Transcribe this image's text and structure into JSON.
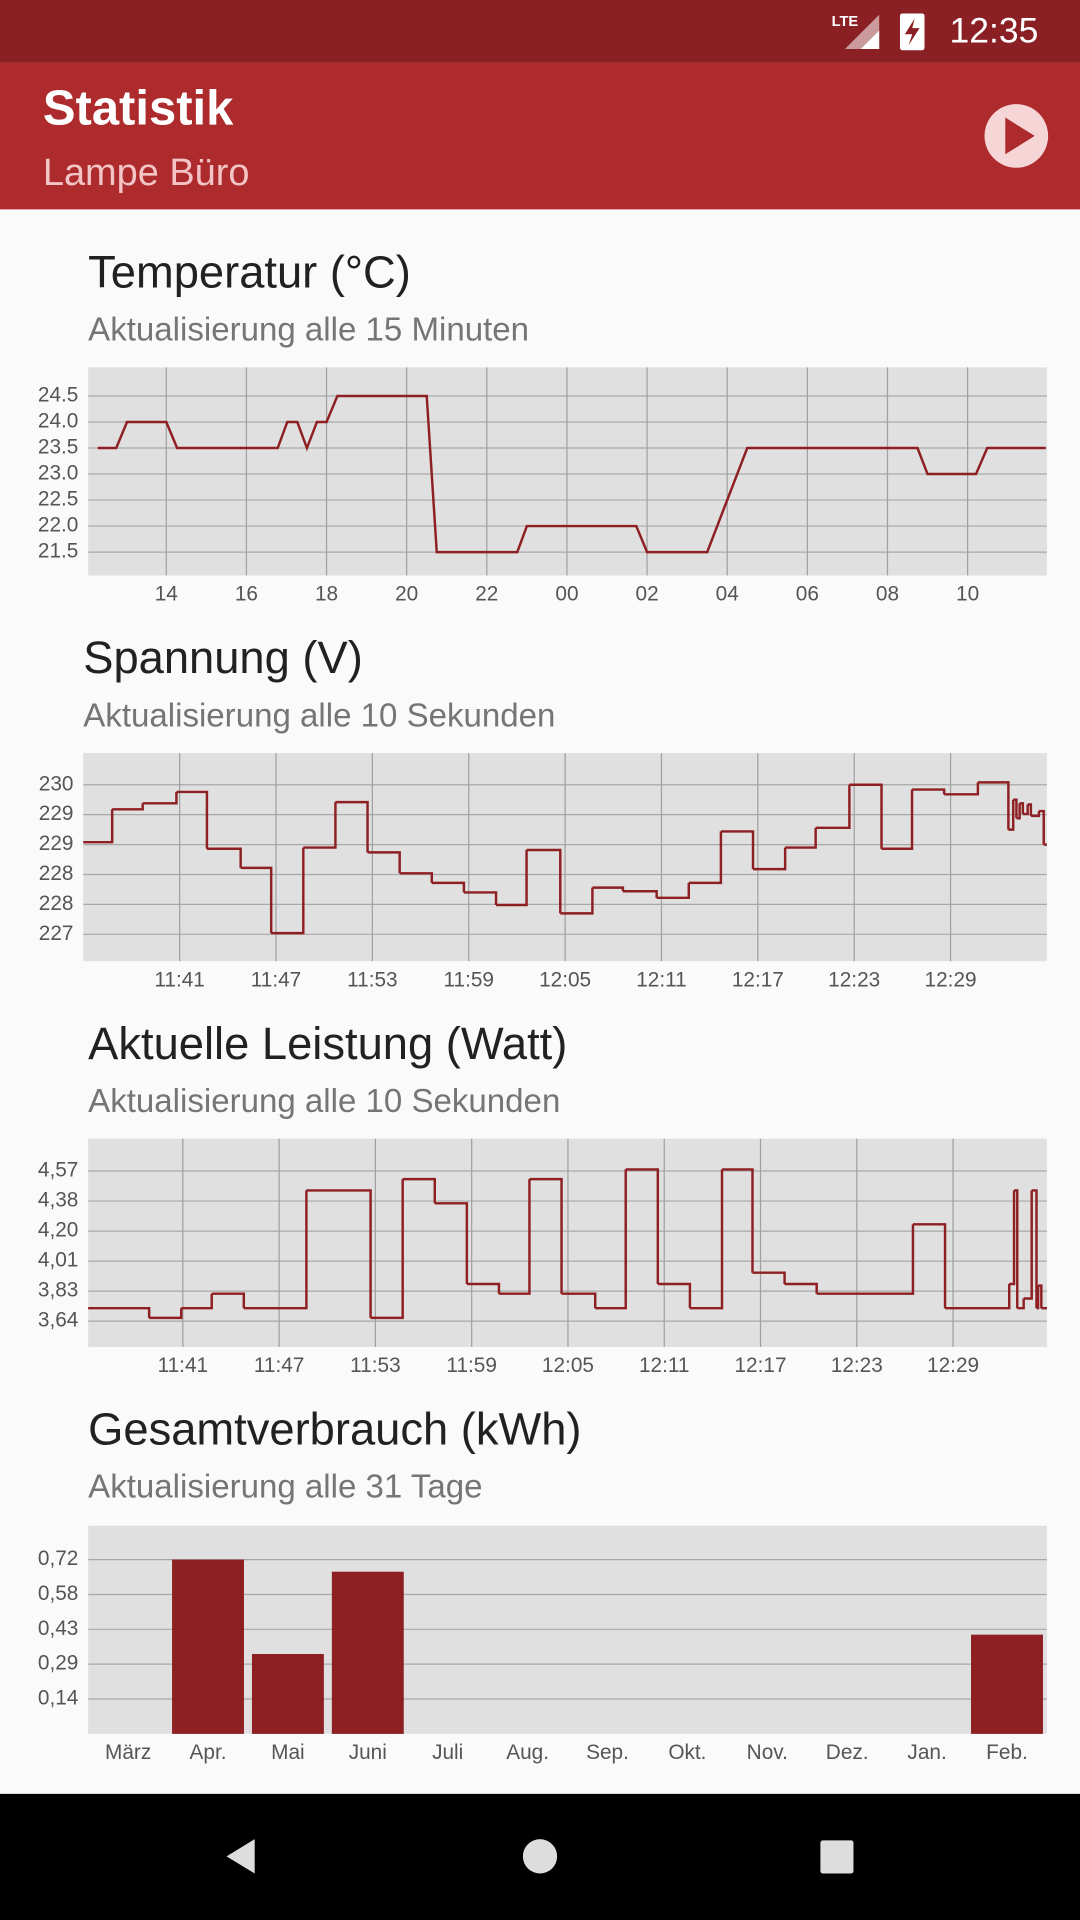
{
  "status_bar": {
    "network": "LTE",
    "time": "12:35"
  },
  "app_bar": {
    "title": "Statistik",
    "subtitle": "Lampe Büro"
  },
  "chart_data": [
    {
      "type": "line",
      "title": "Temperatur (°C)",
      "subtitle": "Aktualisierung alle 15 Minuten",
      "color": "#8e1f22",
      "grid": true,
      "x": [
        12.29,
        12.75,
        13.02,
        14.0,
        14.27,
        16.78,
        17.02,
        17.27,
        17.51,
        17.76,
        18.0,
        18.27,
        20.5,
        20.75,
        22.76,
        23.0,
        25.73,
        26.0,
        27.5,
        28.5,
        32.75,
        33.0,
        34.21,
        34.49,
        35.95
      ],
      "values": [
        23.5,
        23.5,
        24.0,
        24.0,
        23.5,
        23.5,
        24.0,
        24.0,
        23.5,
        24.0,
        24.0,
        24.5,
        24.5,
        21.5,
        21.5,
        22.0,
        22.0,
        21.5,
        21.5,
        23.5,
        23.5,
        23.0,
        23.0,
        23.5,
        23.5
      ],
      "xlim": [
        12.05,
        35.98
      ],
      "ylim": [
        21.05,
        25.05
      ],
      "xticks": [
        {
          "value": 14,
          "label": "14"
        },
        {
          "value": 16,
          "label": "16"
        },
        {
          "value": 18,
          "label": "18"
        },
        {
          "value": 20,
          "label": "20"
        },
        {
          "value": 22,
          "label": "22"
        },
        {
          "value": 24,
          "label": "00"
        },
        {
          "value": 26,
          "label": "02"
        },
        {
          "value": 28,
          "label": "04"
        },
        {
          "value": 30,
          "label": "06"
        },
        {
          "value": 32,
          "label": "08"
        },
        {
          "value": 34,
          "label": "10"
        }
      ],
      "yticks": [
        21.5,
        {
          "value": 22,
          "label": "22.0"
        },
        22.5,
        {
          "value": 23,
          "label": "23.0"
        },
        23.5,
        {
          "value": 24,
          "label": "24.0"
        },
        24.5
      ]
    },
    {
      "type": "line",
      "step": "post",
      "title": "Spannung (V)",
      "subtitle": "Aktualisierung alle 10 Sekunden",
      "color": "#8e1f22",
      "grid": true,
      "x": [
        695.0,
        696.8,
        698.7,
        700.8,
        702.7,
        704.8,
        706.7,
        708.7,
        710.7,
        712.7,
        714.7,
        716.7,
        718.7,
        720.7,
        722.6,
        724.7,
        726.7,
        728.6,
        730.7,
        732.7,
        734.7,
        736.7,
        738.7,
        740.6,
        742.7,
        744.7,
        746.6,
        748.6,
        750.7,
        752.6,
        752.9,
        753.1,
        753.3,
        753.5,
        753.8,
        754.0,
        754.5,
        754.8
      ],
      "values": [
        228.74,
        229.29,
        229.39,
        229.58,
        228.63,
        228.31,
        227.22,
        228.65,
        229.41,
        228.57,
        228.22,
        228.06,
        227.9,
        227.69,
        228.61,
        227.55,
        227.98,
        227.92,
        227.81,
        228.06,
        228.92,
        228.29,
        228.65,
        228.98,
        229.7,
        228.63,
        229.62,
        229.54,
        229.74,
        228.95,
        229.45,
        229.14,
        229.39,
        229.21,
        229.37,
        229.18,
        229.26,
        228.7
      ],
      "xlim": [
        695,
        755
      ],
      "ylim": [
        226.75,
        230.23
      ],
      "xticks": [
        {
          "value": 701,
          "label": "11:41"
        },
        {
          "value": 707,
          "label": "11:47"
        },
        {
          "value": 713,
          "label": "11:53"
        },
        {
          "value": 719,
          "label": "11:59"
        },
        {
          "value": 725,
          "label": "12:05"
        },
        {
          "value": 731,
          "label": "12:11"
        },
        {
          "value": 737,
          "label": "12:17"
        },
        {
          "value": 743,
          "label": "12:23"
        },
        {
          "value": 749,
          "label": "12:29"
        }
      ],
      "yticks": [
        {
          "value": 227.2,
          "label": "227"
        },
        {
          "value": 227.7,
          "label": "228"
        },
        {
          "value": 228.2,
          "label": "228"
        },
        {
          "value": 228.7,
          "label": "229"
        },
        {
          "value": 229.2,
          "label": "229"
        },
        {
          "value": 229.7,
          "label": "230"
        }
      ]
    },
    {
      "type": "line",
      "step": "post",
      "title": "Aktuelle Leistung (Watt)",
      "subtitle": "Aktualisierung alle 10 Sekunden",
      "color": "#8e1f22",
      "grid": true,
      "x": [
        695.1,
        698.9,
        700.9,
        702.8,
        704.8,
        708.7,
        712.7,
        714.7,
        716.7,
        718.7,
        720.7,
        722.6,
        724.6,
        726.7,
        728.6,
        730.6,
        732.6,
        734.6,
        736.5,
        738.5,
        740.5,
        746.5,
        748.5,
        752.5,
        752.8,
        753.0,
        753.4,
        753.9,
        754.2,
        754.3,
        754.5
      ],
      "values": [
        3.72,
        3.66,
        3.72,
        3.81,
        3.72,
        4.45,
        3.66,
        4.52,
        4.37,
        3.87,
        3.81,
        4.52,
        3.81,
        3.72,
        4.58,
        3.87,
        3.72,
        4.58,
        3.94,
        3.87,
        3.81,
        4.24,
        3.72,
        3.87,
        4.45,
        3.72,
        3.78,
        4.45,
        3.72,
        3.86,
        3.72
      ],
      "xlim": [
        695.1,
        754.85
      ],
      "ylim": [
        3.48,
        4.77
      ],
      "xticks": [
        {
          "value": 701,
          "label": "11:41"
        },
        {
          "value": 707,
          "label": "11:47"
        },
        {
          "value": 713,
          "label": "11:53"
        },
        {
          "value": 719,
          "label": "11:59"
        },
        {
          "value": 725,
          "label": "12:05"
        },
        {
          "value": 731,
          "label": "12:11"
        },
        {
          "value": 737,
          "label": "12:17"
        },
        {
          "value": 743,
          "label": "12:23"
        },
        {
          "value": 749,
          "label": "12:29"
        }
      ],
      "yticks": [
        {
          "value": 3.64,
          "label": "3,64"
        },
        {
          "value": 3.826,
          "label": "3,83"
        },
        {
          "value": 4.012,
          "label": "4,01"
        },
        {
          "value": 4.198,
          "label": "4,20"
        },
        {
          "value": 4.384,
          "label": "4,38"
        },
        {
          "value": 4.57,
          "label": "4,57"
        }
      ]
    },
    {
      "type": "bar",
      "title": "Gesamtverbrauch (kWh)",
      "subtitle": "Aktualisierung alle 31 Tage",
      "color": "#8e1f22",
      "grid": true,
      "categories": [
        "März",
        "Apr.",
        "Mai",
        "Juni",
        "Juli",
        "Aug.",
        "Sep.",
        "Okt.",
        "Nov.",
        "Dez.",
        "Jan.",
        "Feb."
      ],
      "values": [
        0,
        0.72,
        0.33,
        0.67,
        0,
        0,
        0,
        0,
        0,
        0,
        0,
        0.41
      ],
      "ylim": [
        0,
        0.86
      ],
      "yticks": [
        {
          "value": 0.144,
          "label": "0,14"
        },
        {
          "value": 0.288,
          "label": "0,29"
        },
        {
          "value": 0.432,
          "label": "0,43"
        },
        {
          "value": 0.576,
          "label": "0,58"
        },
        {
          "value": 0.72,
          "label": "0,72"
        }
      ]
    }
  ]
}
